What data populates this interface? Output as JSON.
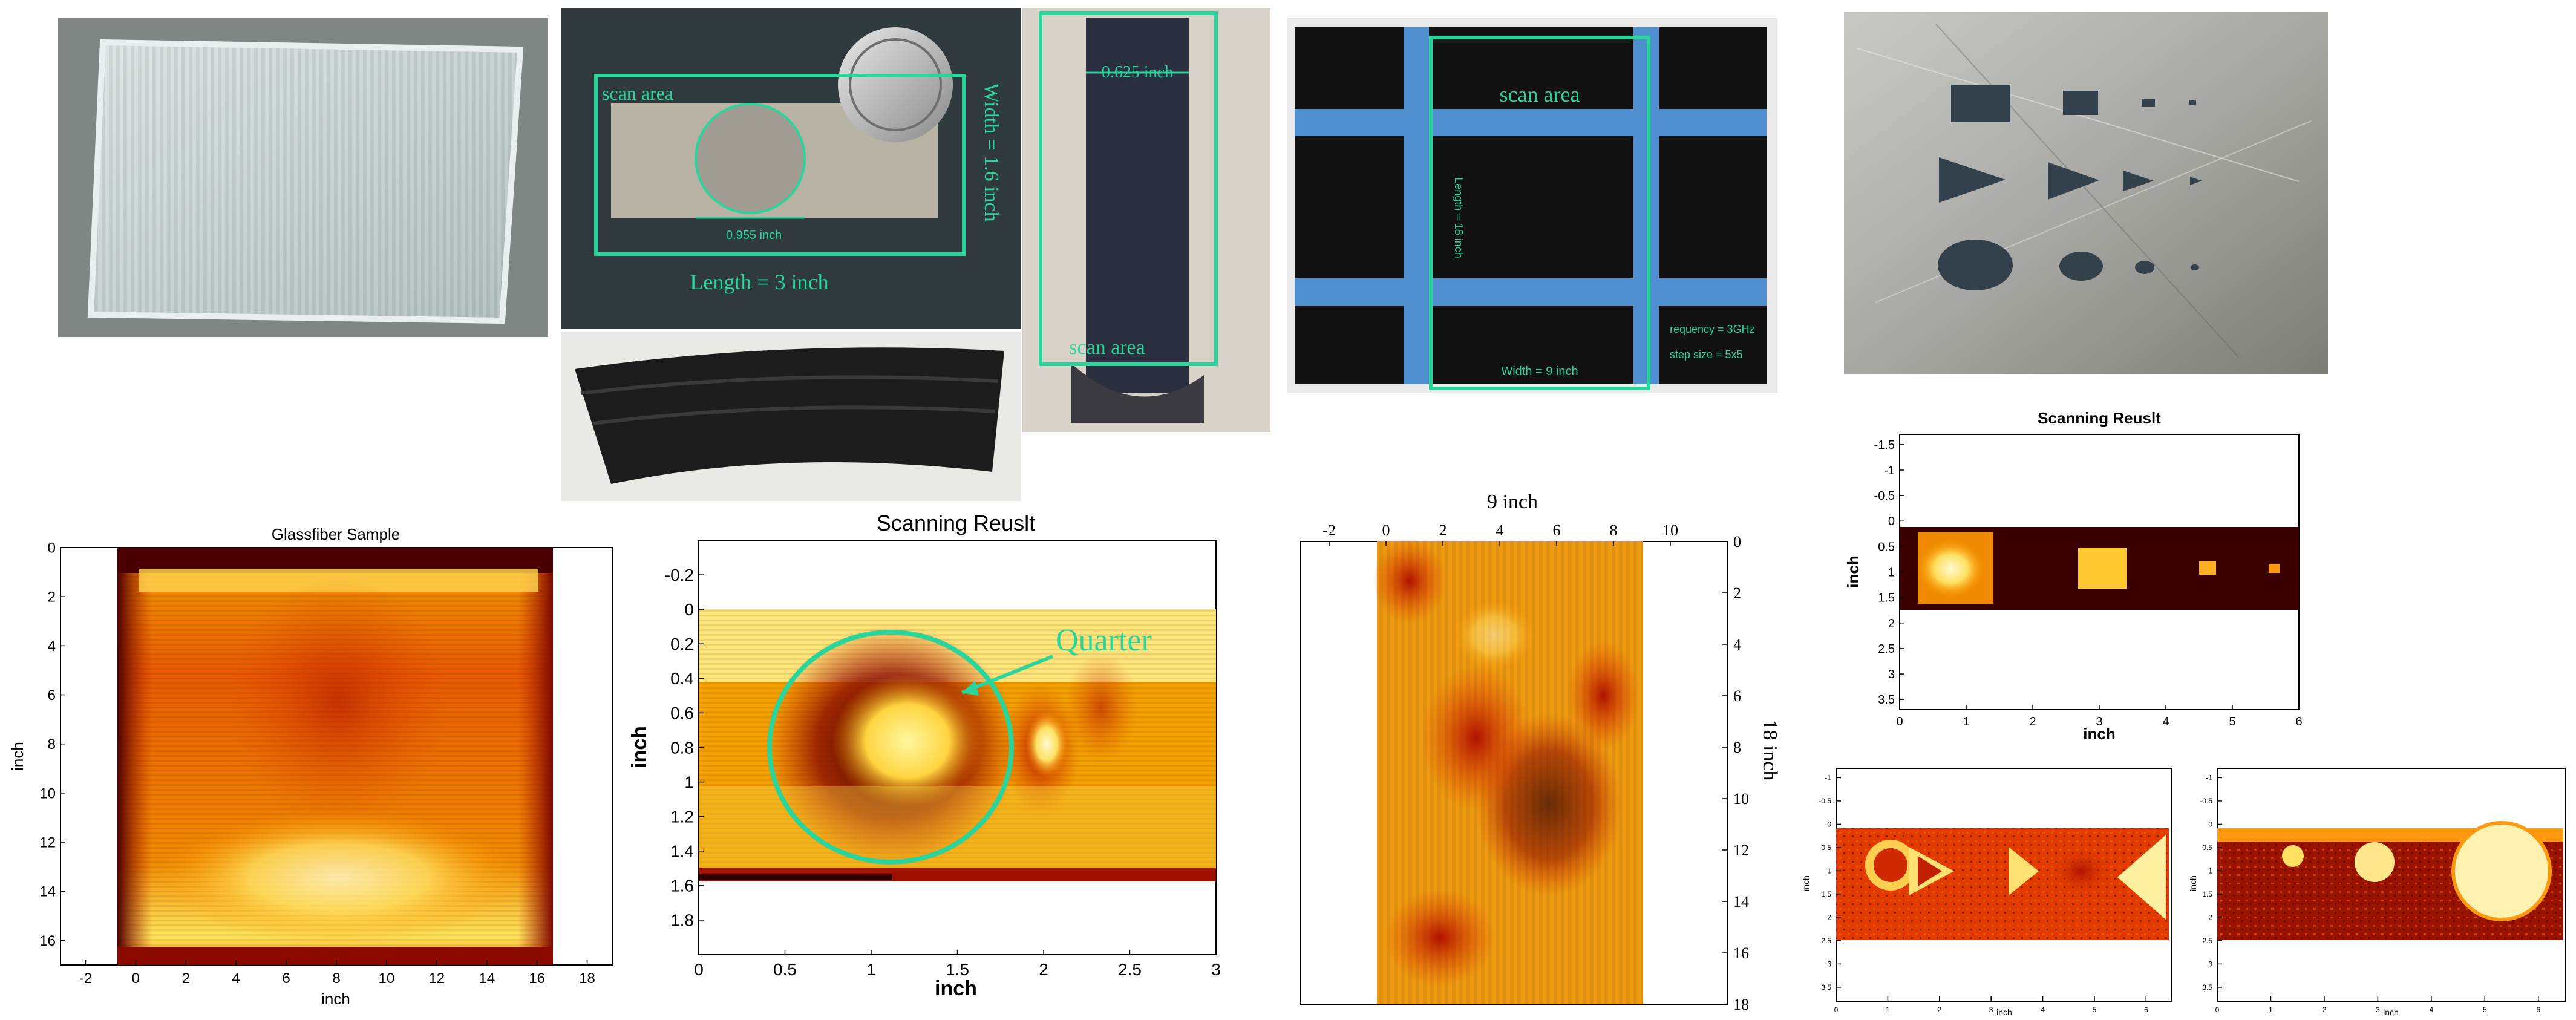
{
  "photos": {
    "p2": {
      "scan_area": "scan area",
      "width_label": "Width = 1.6 inch",
      "length_label": "Length = 3 inch",
      "dim_label": "0.955 inch"
    },
    "p3": {
      "dim_label": "0.625 inch",
      "scan_area": "scan area"
    },
    "p4": {
      "scan_area": "scan area",
      "length_label": "Length = 18 inch",
      "width_label": "Width = 9 inch",
      "freq_label": "requency = 3GHz",
      "step_label": "step size = 5x5"
    }
  },
  "colors": {
    "hot_dark": "#3a0000",
    "hot_red": "#c81e00",
    "hot_orange": "#f07a00",
    "hot_yellow": "#fff070",
    "annotation_green": "#2bd49a"
  },
  "chart_data": [
    {
      "id": "glassfiber",
      "type": "heatmap",
      "title": "Glassfiber Sample",
      "xlabel": "inch",
      "ylabel": "inch",
      "xlim": [
        -3,
        19
      ],
      "ylim": [
        0,
        17
      ],
      "xticks": [
        "-2",
        "0",
        "2",
        "4",
        "6",
        "8",
        "10",
        "12",
        "14",
        "16",
        "18"
      ],
      "yticks": [
        "0",
        "2",
        "4",
        "6",
        "8",
        "10",
        "12",
        "14",
        "16"
      ],
      "colormap": "hot"
    },
    {
      "id": "quarter",
      "type": "heatmap",
      "title": "Scanning Reuslt",
      "xlabel": "inch",
      "ylabel": "inch",
      "xlim": [
        0,
        3
      ],
      "ylim": [
        -0.4,
        2.0
      ],
      "xticks": [
        "0",
        "0.5",
        "1",
        "1.5",
        "2",
        "2.5",
        "3"
      ],
      "yticks": [
        "-0.2",
        "0",
        "0.2",
        "0.4",
        "0.6",
        "0.8",
        "1",
        "1.2",
        "1.4",
        "1.6",
        "1.8"
      ],
      "annotation": "Quarter",
      "colormap": "hot"
    },
    {
      "id": "composite",
      "type": "heatmap",
      "title": "9 inch",
      "ylabel": "18 inch",
      "xlim": [
        -3,
        12
      ],
      "ylim": [
        0,
        18
      ],
      "xticks": [
        "-2",
        "0",
        "2",
        "4",
        "6",
        "8",
        "10"
      ],
      "yticks": [
        "0",
        "2",
        "4",
        "6",
        "8",
        "10",
        "12",
        "14",
        "16",
        "18"
      ],
      "colormap": "hot"
    },
    {
      "id": "squares",
      "type": "heatmap",
      "title": "Scanning Reuslt",
      "xlabel": "inch",
      "ylabel": "inch",
      "xlim": [
        0,
        6
      ],
      "ylim": [
        -1.7,
        3.7
      ],
      "xticks": [
        "0",
        "1",
        "2",
        "3",
        "4",
        "5",
        "6"
      ],
      "yticks": [
        "-1.5",
        "-1",
        "-0.5",
        "0",
        "0.5",
        "1",
        "1.5",
        "2",
        "2.5",
        "3",
        "3.5"
      ],
      "colormap": "hot"
    },
    {
      "id": "triangles",
      "type": "heatmap",
      "title": "",
      "xlabel": "inch",
      "ylabel": "inch",
      "xlim": [
        0,
        6.5
      ],
      "ylim": [
        -1.2,
        3.8
      ],
      "xticks": [
        "0",
        "1",
        "2",
        "3",
        "4",
        "5",
        "6"
      ],
      "yticks": [
        "-1",
        "-0.5",
        "0",
        "0.5",
        "1",
        "1.5",
        "2",
        "2.5",
        "3",
        "3.5"
      ],
      "colormap": "hot"
    },
    {
      "id": "circles",
      "type": "heatmap",
      "title": "",
      "xlabel": "inch",
      "ylabel": "inch",
      "xlim": [
        0,
        6.5
      ],
      "ylim": [
        -1.2,
        3.8
      ],
      "xticks": [
        "0",
        "1",
        "2",
        "3",
        "4",
        "5",
        "6"
      ],
      "yticks": [
        "-1",
        "-0.5",
        "0",
        "0.5",
        "1",
        "1.5",
        "2",
        "2.5",
        "3",
        "3.5"
      ],
      "colormap": "hot"
    }
  ]
}
